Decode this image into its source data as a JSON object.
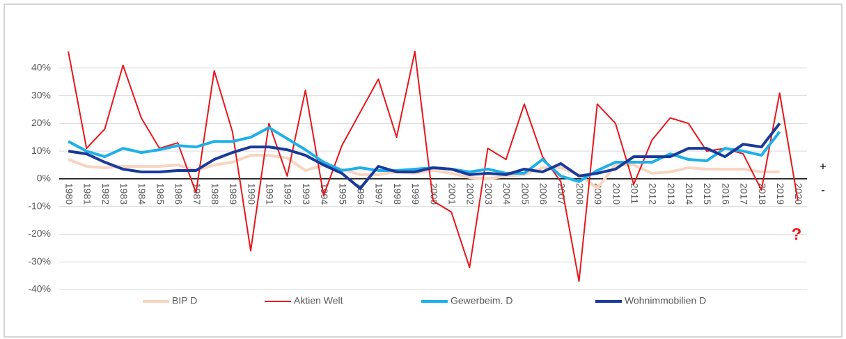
{
  "chart_data": {
    "type": "line",
    "categories": [
      "1980",
      "1981",
      "1982",
      "1983",
      "1984",
      "1985",
      "1986",
      "1987",
      "1988",
      "1989",
      "1990",
      "1991",
      "1992",
      "1993",
      "1994",
      "1995",
      "1996",
      "1997",
      "1998",
      "1999",
      "2000",
      "2001",
      "2002",
      "2003",
      "2004",
      "2005",
      "2006",
      "2007",
      "2008",
      "2009",
      "2010",
      "2011",
      "2012",
      "2013",
      "2014",
      "2015",
      "2016",
      "2017",
      "2018",
      "2019",
      "2020"
    ],
    "series": [
      {
        "name": "BIP D",
        "color": "#f8d5c0",
        "values": [
          7,
          4.5,
          4,
          4.5,
          4.5,
          4.5,
          5,
          3,
          5,
          6,
          8.5,
          8.5,
          7.5,
          3,
          5,
          3.5,
          1.5,
          1.5,
          2.5,
          2,
          3,
          2,
          0.5,
          0,
          1,
          1.5,
          4,
          4,
          1.5,
          -3.5,
          5,
          5,
          2,
          2.5,
          4,
          3.5,
          3.5,
          3.5,
          2.5,
          2.5,
          null
        ]
      },
      {
        "name": "Aktien Welt",
        "color": "#e8161b",
        "values": [
          46,
          11,
          18,
          41,
          22,
          11,
          13,
          -5,
          39,
          17,
          -26,
          20,
          1,
          32,
          -6,
          12,
          24,
          36,
          15,
          46,
          -8,
          -12,
          -32,
          11,
          7,
          27,
          8,
          -1,
          -37,
          27,
          20,
          -2,
          14,
          22,
          20,
          10,
          11,
          9,
          -4,
          31,
          -8
        ]
      },
      {
        "name": "Gewerbeim. D",
        "color": "#1eb0e8",
        "values": [
          13.5,
          10,
          8,
          11,
          9.5,
          10.5,
          12,
          11.5,
          13.5,
          13.5,
          15,
          18.5,
          14.5,
          10.5,
          6,
          3,
          4,
          3,
          3,
          3.5,
          4,
          3.5,
          2.5,
          3.5,
          2,
          2,
          7,
          1,
          -1,
          3,
          6,
          6,
          6,
          9,
          7,
          6.5,
          11,
          10,
          8.5,
          17,
          null
        ]
      },
      {
        "name": "Wohnimmobilien D",
        "color": "#1a3a9a",
        "values": [
          10,
          9,
          6,
          3.5,
          2.5,
          2.5,
          3,
          3,
          7,
          9.5,
          11.5,
          11.5,
          10.5,
          8.5,
          5,
          2,
          -3.5,
          4.5,
          2.5,
          2.5,
          4,
          3.5,
          1.5,
          2,
          1.5,
          3.5,
          2.5,
          5.5,
          1,
          2,
          3.5,
          8,
          8,
          8,
          11,
          11,
          8,
          12.5,
          11.5,
          20,
          null
        ]
      }
    ],
    "ylim": [
      -40,
      50
    ],
    "yticks": [
      {
        "value": -40,
        "label": "-40%"
      },
      {
        "value": -30,
        "label": "-30%"
      },
      {
        "value": -20,
        "label": "-20%"
      },
      {
        "value": -10,
        "label": "-10%"
      },
      {
        "value": 0,
        "label": "0%"
      },
      {
        "value": 10,
        "label": "10%"
      },
      {
        "value": 20,
        "label": "20%"
      },
      {
        "value": 30,
        "label": "30%"
      },
      {
        "value": 40,
        "label": "40%"
      }
    ],
    "grid": true,
    "annotations": [
      "+",
      "-",
      "?"
    ]
  }
}
